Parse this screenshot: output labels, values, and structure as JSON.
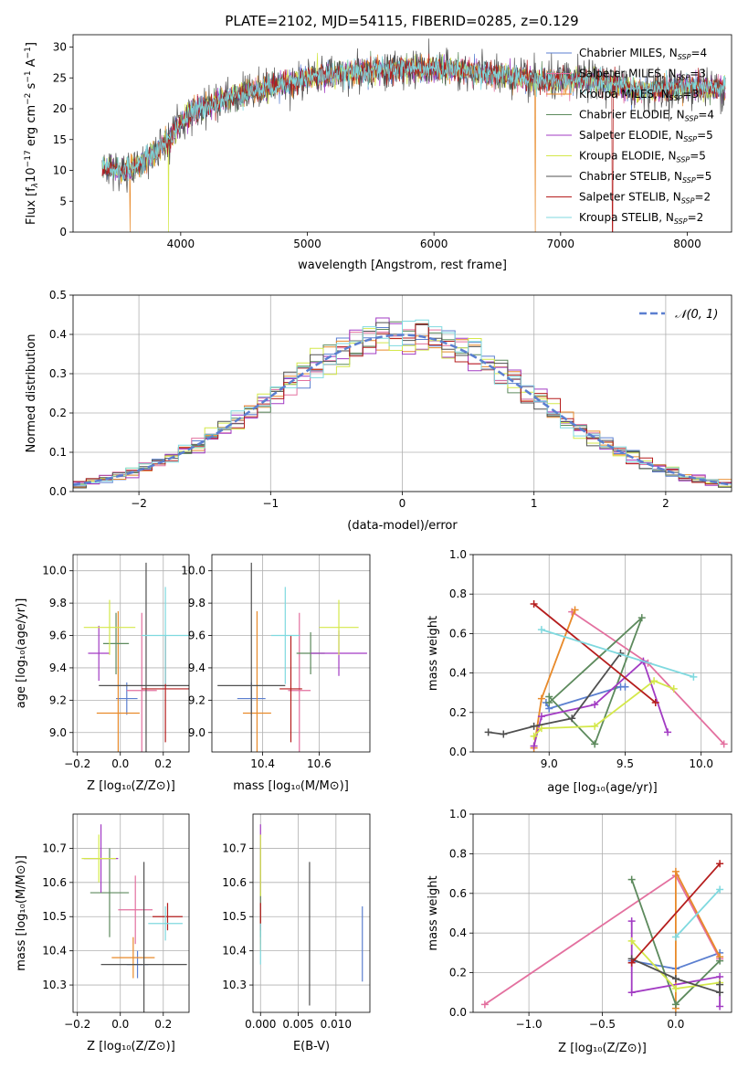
{
  "figure": {
    "title": "PLATE=2102, MJD=54115, FIBERID=0285, z=0.129"
  },
  "colors": {
    "chabrier_miles": "#5b7fd0",
    "salpeter_miles": "#e3709f",
    "kroupa_miles": "#e88a2a",
    "chabrier_elodie": "#5d8a5d",
    "salpeter_elodie": "#a23bc3",
    "kroupa_elodie": "#d4e84a",
    "chabrier_stelib": "#505050",
    "salpeter_stelib": "#b51d1d",
    "kroupa_stelib": "#7fd9df",
    "grid": "#b0b0b0"
  },
  "chart_data": [
    {
      "id": "spectrum",
      "type": "line",
      "title": "PLATE=2102, MJD=54115, FIBERID=0285, z=0.129",
      "xlabel": "wavelength [Angstrom, rest frame]",
      "ylabel_parts": [
        "Flux [f",
        "λ",
        "10",
        "−17",
        " erg cm",
        "−2",
        " s",
        "−1",
        " A",
        "−1",
        "]"
      ],
      "xlim": [
        3150,
        8350
      ],
      "ylim": [
        0,
        32
      ],
      "xticks": [
        4000,
        5000,
        6000,
        7000,
        8000
      ],
      "yticks": [
        0,
        5,
        10,
        15,
        20,
        25,
        30
      ],
      "grid": false,
      "legend_position": "upper-right",
      "continuum_nodes": {
        "x": [
          3380,
          3500,
          3600,
          3700,
          3800,
          3900,
          4000,
          4100,
          4200,
          4400,
          4600,
          4800,
          5000,
          5200,
          5400,
          5600,
          5800,
          6000,
          6200,
          6400,
          6600,
          6800,
          7000,
          7200,
          7400,
          7600,
          7800,
          8000,
          8200,
          8300
        ],
        "y": [
          10.5,
          10,
          10.2,
          11.5,
          13,
          15,
          17.5,
          19.5,
          20.5,
          22,
          23,
          24,
          25,
          25.5,
          26,
          26.3,
          26.5,
          26.5,
          26.2,
          25.8,
          25.2,
          24.5,
          24.5,
          24.8,
          24,
          23,
          23.2,
          23.5,
          23.3,
          23.3
        ]
      },
      "series": [
        {
          "name": "Chabrier MILES",
          "nssp": "4",
          "color_key": "chabrier_miles"
        },
        {
          "name": "Salpeter MILES",
          "nssp": "3",
          "color_key": "salpeter_miles"
        },
        {
          "name": "Kroupa MILES",
          "nssp": "3",
          "color_key": "kroupa_miles"
        },
        {
          "name": "Chabrier ELODIE",
          "nssp": "4",
          "color_key": "chabrier_elodie"
        },
        {
          "name": "Salpeter ELODIE",
          "nssp": "5",
          "color_key": "salpeter_elodie"
        },
        {
          "name": "Kroupa ELODIE",
          "nssp": "5",
          "color_key": "kroupa_elodie"
        },
        {
          "name": "Chabrier STELIB",
          "nssp": "5",
          "color_key": "chabrier_stelib"
        },
        {
          "name": "Salpeter STELIB",
          "nssp": "2",
          "color_key": "salpeter_stelib"
        },
        {
          "name": "Kroupa STELIB",
          "nssp": "2",
          "color_key": "kroupa_stelib"
        }
      ],
      "drops": [
        {
          "x": 3600,
          "color_key": "kroupa_miles"
        },
        {
          "x": 3905,
          "color_key": "kroupa_elodie"
        },
        {
          "x": 6800,
          "color_key": "kroupa_miles"
        },
        {
          "x": 7410,
          "color_key": "salpeter_stelib"
        }
      ]
    },
    {
      "id": "residuals",
      "type": "histogram",
      "xlabel": "(data-model)/error",
      "ylabel": "Normed distribution",
      "xlim": [
        -2.5,
        2.5
      ],
      "ylim": [
        0,
        0.5
      ],
      "xticks": [
        -2,
        -1,
        0,
        1,
        2
      ],
      "yticks": [
        0.0,
        0.1,
        0.2,
        0.3,
        0.4,
        0.5
      ],
      "grid": true,
      "bin_width": 0.1,
      "reference_curve": {
        "name": "𝒩(0, 1)",
        "mean": 0,
        "sigma": 1,
        "color_key": "chabrier_miles"
      },
      "legend_position": "upper-right"
    },
    {
      "id": "age_vs_z",
      "type": "scatter",
      "xlabel": "Z [log₁₀(Z/Z⊙)]",
      "ylabel": "age  [log₁₀(age/yr)]",
      "xlim": [
        -0.22,
        0.32
      ],
      "ylim": [
        8.88,
        10.1
      ],
      "xticks": [
        -0.2,
        0.0,
        0.2
      ],
      "yticks": [
        9.0,
        9.2,
        9.4,
        9.6,
        9.8,
        10.0
      ],
      "grid": true,
      "points": [
        {
          "color_key": "chabrier_miles",
          "x": 0.03,
          "y": 9.21,
          "xerr": 0.05,
          "yerr": 0.1
        },
        {
          "color_key": "salpeter_miles",
          "x": 0.1,
          "y": 9.26,
          "xerr": 0.07,
          "yerr": 0.48
        },
        {
          "color_key": "kroupa_miles",
          "x": -0.01,
          "y": 9.12,
          "xerr": 0.1,
          "yerr": 0.63
        },
        {
          "color_key": "chabrier_elodie",
          "x": -0.02,
          "y": 9.55,
          "xerr": 0.06,
          "yerr": 0.19
        },
        {
          "color_key": "salpeter_elodie",
          "x": -0.1,
          "y": 9.49,
          "xerr": 0.05,
          "yerr": 0.17
        },
        {
          "color_key": "kroupa_elodie",
          "x": -0.05,
          "y": 9.65,
          "xerr": 0.12,
          "yerr": 0.17
        },
        {
          "color_key": "chabrier_stelib",
          "x": 0.12,
          "y": 9.29,
          "xerr": 0.22,
          "yerr": 0.76
        },
        {
          "color_key": "salpeter_stelib",
          "x": 0.21,
          "y": 9.27,
          "xerr": 0.11,
          "yerr": 0.33
        },
        {
          "color_key": "kroupa_stelib",
          "x": 0.21,
          "y": 9.6,
          "xerr": 0.11,
          "yerr": 0.3
        }
      ]
    },
    {
      "id": "age_vs_mass",
      "type": "scatter",
      "xlabel": "mass [log₁₀(M/M⊙)]",
      "ylabel": "",
      "xlim": [
        10.22,
        10.78
      ],
      "ylim": [
        8.88,
        10.1
      ],
      "xticks": [
        10.4,
        10.6
      ],
      "yticks": [
        9.0,
        9.2,
        9.4,
        9.6,
        9.8,
        10.0
      ],
      "grid": true,
      "points": [
        {
          "color_key": "chabrier_miles",
          "x": 10.36,
          "y": 9.21,
          "xerr": 0.05,
          "yerr": 0.1
        },
        {
          "color_key": "salpeter_miles",
          "x": 10.53,
          "y": 9.26,
          "xerr": 0.04,
          "yerr": 0.48
        },
        {
          "color_key": "kroupa_miles",
          "x": 10.38,
          "y": 9.12,
          "xerr": 0.05,
          "yerr": 0.63
        },
        {
          "color_key": "chabrier_elodie",
          "x": 10.57,
          "y": 9.49,
          "xerr": 0.05,
          "yerr": 0.13
        },
        {
          "color_key": "salpeter_elodie",
          "x": 10.67,
          "y": 9.49,
          "xerr": 0.1,
          "yerr": 0.14
        },
        {
          "color_key": "kroupa_elodie",
          "x": 10.67,
          "y": 9.65,
          "xerr": 0.07,
          "yerr": 0.17
        },
        {
          "color_key": "chabrier_stelib",
          "x": 10.36,
          "y": 9.29,
          "xerr": 0.12,
          "yerr": 0.76
        },
        {
          "color_key": "salpeter_stelib",
          "x": 10.5,
          "y": 9.27,
          "xerr": 0.04,
          "yerr": 0.33
        },
        {
          "color_key": "kroupa_stelib",
          "x": 10.48,
          "y": 9.6,
          "xerr": 0.05,
          "yerr": 0.3
        }
      ]
    },
    {
      "id": "weight_vs_age",
      "type": "line",
      "xlabel": "age  [log₁₀(age/yr)]",
      "ylabel": "mass weight",
      "xlim": [
        8.5,
        10.2
      ],
      "ylim": [
        0,
        1
      ],
      "xticks": [
        9.0,
        9.5,
        10.0
      ],
      "yticks": [
        0.0,
        0.2,
        0.4,
        0.6,
        0.8,
        1.0
      ],
      "grid": true,
      "series": [
        {
          "color_key": "chabrier_miles",
          "x": [
            8.98,
            9.0,
            9.47,
            9.5
          ],
          "y": [
            0.25,
            0.22,
            0.33,
            0.33
          ]
        },
        {
          "color_key": "salpeter_miles",
          "x": [
            9.15,
            9.65,
            10.15
          ],
          "y": [
            0.71,
            0.45,
            0.04
          ]
        },
        {
          "color_key": "kroupa_miles",
          "x": [
            8.9,
            8.95,
            9.17
          ],
          "y": [
            0.02,
            0.27,
            0.72
          ]
        },
        {
          "color_key": "chabrier_elodie",
          "x": [
            9.0,
            9.3,
            9.61,
            9.0
          ],
          "y": [
            0.28,
            0.04,
            0.68,
            0.25
          ]
        },
        {
          "color_key": "salpeter_elodie",
          "x": [
            8.9,
            8.95,
            9.3,
            9.62,
            9.78
          ],
          "y": [
            0.03,
            0.18,
            0.24,
            0.46,
            0.1
          ]
        },
        {
          "color_key": "kroupa_elodie",
          "x": [
            8.9,
            8.95,
            9.3,
            9.69,
            9.82
          ],
          "y": [
            0.08,
            0.12,
            0.13,
            0.36,
            0.32
          ]
        },
        {
          "color_key": "chabrier_stelib",
          "x": [
            8.6,
            8.7,
            8.9,
            9.15,
            9.47
          ],
          "y": [
            0.1,
            0.09,
            0.13,
            0.17,
            0.5
          ]
        },
        {
          "color_key": "salpeter_stelib",
          "x": [
            8.9,
            9.7
          ],
          "y": [
            0.75,
            0.25
          ]
        },
        {
          "color_key": "kroupa_stelib",
          "x": [
            8.95,
            9.95
          ],
          "y": [
            0.62,
            0.38
          ]
        }
      ]
    },
    {
      "id": "mass_vs_z",
      "type": "scatter",
      "xlabel": "Z [log₁₀(Z/Z⊙)]",
      "ylabel": "mass [log₁₀(M/M⊙)]",
      "xlim": [
        -0.22,
        0.32
      ],
      "ylim": [
        10.22,
        10.8
      ],
      "xticks": [
        -0.2,
        0.0,
        0.2
      ],
      "yticks": [
        10.3,
        10.4,
        10.5,
        10.6,
        10.7
      ],
      "grid": true,
      "points": [
        {
          "color_key": "chabrier_miles",
          "x": 0.08,
          "y": 10.36,
          "xerr": 0.05,
          "yerr": 0.04
        },
        {
          "color_key": "salpeter_miles",
          "x": 0.07,
          "y": 10.52,
          "xerr": 0.08,
          "yerr": 0.1
        },
        {
          "color_key": "kroupa_miles",
          "x": 0.06,
          "y": 10.38,
          "xerr": 0.1,
          "yerr": 0.06
        },
        {
          "color_key": "chabrier_elodie",
          "x": -0.05,
          "y": 10.57,
          "xerr": 0.09,
          "yerr": 0.13
        },
        {
          "color_key": "salpeter_elodie",
          "x": -0.09,
          "y": 10.67,
          "xerr": 0.08,
          "yerr": 0.1
        },
        {
          "color_key": "kroupa_elodie",
          "x": -0.1,
          "y": 10.67,
          "xerr": 0.08,
          "yerr": 0.07
        },
        {
          "color_key": "chabrier_stelib",
          "x": 0.11,
          "y": 10.36,
          "xerr": 0.2,
          "yerr": 0.3
        },
        {
          "color_key": "salpeter_stelib",
          "x": 0.22,
          "y": 10.5,
          "xerr": 0.07,
          "yerr": 0.04
        },
        {
          "color_key": "kroupa_stelib",
          "x": 0.21,
          "y": 10.48,
          "xerr": 0.08,
          "yerr": 0.05
        }
      ]
    },
    {
      "id": "mass_vs_ebv",
      "type": "scatter",
      "xlabel": "E(B-V)",
      "ylabel": "",
      "xlim": [
        -0.001,
        0.0145
      ],
      "ylim": [
        10.22,
        10.8
      ],
      "xticks": [
        0.0,
        0.005,
        0.01
      ],
      "xtick_labels": [
        "0.000",
        "0.005",
        "0.010"
      ],
      "yticks": [
        10.3,
        10.4,
        10.5,
        10.6,
        10.7
      ],
      "grid": true,
      "points": [
        {
          "color_key": "chabrier_miles",
          "x": 0.0135,
          "y": 10.42,
          "xerr": 0,
          "yerr": 0.11
        },
        {
          "color_key": "salpeter_miles",
          "x": 0.0,
          "y": 10.52,
          "xerr": 0,
          "yerr": 0.1
        },
        {
          "color_key": "kroupa_miles",
          "x": 0.0,
          "y": 10.45,
          "xerr": 0,
          "yerr": 0.05
        },
        {
          "color_key": "chabrier_elodie",
          "x": 0.0,
          "y": 10.57,
          "xerr": 0,
          "yerr": 0.13
        },
        {
          "color_key": "salpeter_elodie",
          "x": 0.0,
          "y": 10.67,
          "xerr": 0,
          "yerr": 0.1
        },
        {
          "color_key": "kroupa_elodie",
          "x": 0.0,
          "y": 10.65,
          "xerr": 0,
          "yerr": 0.09
        },
        {
          "color_key": "chabrier_stelib",
          "x": 0.0065,
          "y": 10.45,
          "xerr": 0,
          "yerr": 0.21
        },
        {
          "color_key": "salpeter_stelib",
          "x": 0.0,
          "y": 10.5,
          "xerr": 0,
          "yerr": 0.04
        },
        {
          "color_key": "kroupa_stelib",
          "x": 0.0,
          "y": 10.42,
          "xerr": 0,
          "yerr": 0.06
        }
      ]
    },
    {
      "id": "weight_vs_z",
      "type": "line",
      "xlabel": "Z [log₁₀(Z/Z⊙)]",
      "ylabel": "mass weight",
      "xlim": [
        -1.38,
        0.38
      ],
      "ylim": [
        0,
        1
      ],
      "xticks": [
        -1.0,
        -0.5,
        0.0
      ],
      "xtick_labels": [
        "−1.0",
        "−0.5",
        "0.0"
      ],
      "yticks": [
        0.0,
        0.2,
        0.4,
        0.6,
        0.8,
        1.0
      ],
      "grid": true,
      "series": [
        {
          "color_key": "chabrier_miles",
          "x": [
            -0.3,
            0.0,
            0.3
          ],
          "y": [
            0.26,
            0.22,
            0.3
          ]
        },
        {
          "color_key": "salpeter_miles",
          "x": [
            -1.3,
            0.0,
            0.3
          ],
          "y": [
            0.04,
            0.69,
            0.27
          ]
        },
        {
          "color_key": "kroupa_miles",
          "x": [
            0.0,
            0.0,
            0.3
          ],
          "y": [
            0.02,
            0.71,
            0.28
          ]
        },
        {
          "color_key": "chabrier_elodie",
          "x": [
            -0.3,
            0.0,
            0.3
          ],
          "y": [
            0.67,
            0.04,
            0.26
          ]
        },
        {
          "color_key": "salpeter_elodie",
          "x": [
            -0.3,
            -0.3,
            0.3,
            0.3
          ],
          "y": [
            0.46,
            0.1,
            0.18,
            0.03
          ]
        },
        {
          "color_key": "kroupa_elodie",
          "x": [
            -0.3,
            0.0,
            0.3
          ],
          "y": [
            0.36,
            0.12,
            0.15
          ]
        },
        {
          "color_key": "chabrier_stelib",
          "x": [
            -0.3,
            0.0,
            0.3,
            0.3
          ],
          "y": [
            0.27,
            0.17,
            0.1,
            0.14
          ]
        },
        {
          "color_key": "salpeter_stelib",
          "x": [
            -0.3,
            0.3
          ],
          "y": [
            0.25,
            0.75
          ]
        },
        {
          "color_key": "kroupa_stelib",
          "x": [
            0.0,
            0.3
          ],
          "y": [
            0.38,
            0.62
          ]
        }
      ]
    }
  ]
}
